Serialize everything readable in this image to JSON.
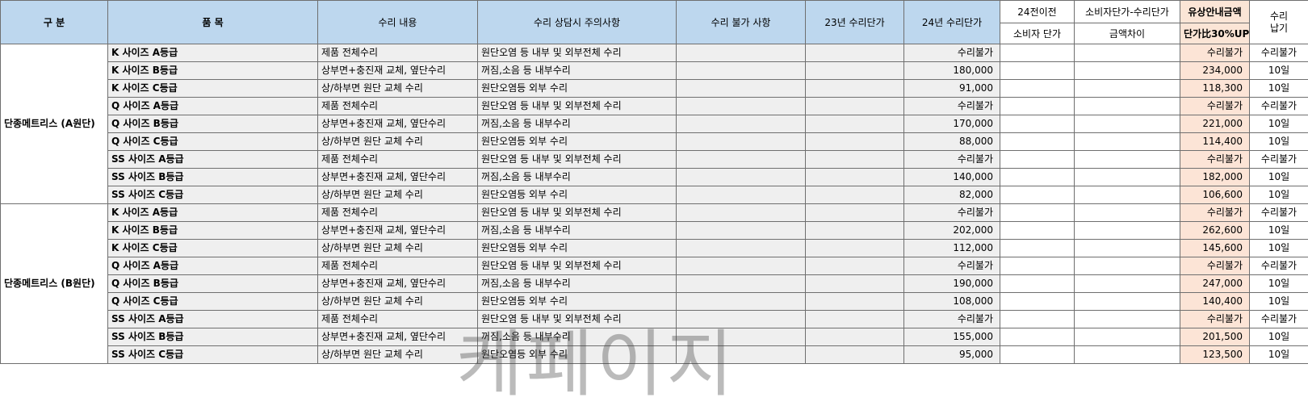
{
  "header": {
    "col_category": "구    분",
    "col_item": "품        목",
    "col_repair": "수리 내용",
    "col_notes": "수리 상담시 주의사항",
    "col_unrepairable": "수리 불가 사항",
    "col_price23": "23년 수리단가",
    "col_price24": "24년 수리단가",
    "col_before24": "24전이전",
    "col_consumer_price": "소비자 단가",
    "col_diff_top": "소비자단가-수리단가",
    "col_diff_bottom": "금액차이",
    "col_paid_top": "유상안내금액",
    "col_paid_bottom": "단가比30%UP",
    "col_days": "수리\n납기"
  },
  "groups": [
    {
      "name": "단종메트리스 (A원단)",
      "rows": [
        {
          "item": "K 사이즈 A등급",
          "repair": "제품 전체수리",
          "notes": "원단오염 등 내부 및 외부전체 수리",
          "price24": "수리불가",
          "paid": "수리불가",
          "days": "수리불가"
        },
        {
          "item": "K 사이즈 B등급",
          "repair": "상부면+충진재 교체, 옆단수리",
          "notes": "꺼짐,소음 등 내부수리",
          "price24": "180,000",
          "paid": "234,000",
          "days": "10일"
        },
        {
          "item": "K 사이즈 C등급",
          "repair": "상/하부면 원단 교체 수리",
          "notes": "원단오염등 외부 수리",
          "price24": "91,000",
          "paid": "118,300",
          "days": "10일"
        },
        {
          "item": "Q 사이즈 A등급",
          "repair": "제품 전체수리",
          "notes": "원단오염 등 내부 및 외부전체 수리",
          "price24": "수리불가",
          "paid": "수리불가",
          "days": "수리불가"
        },
        {
          "item": "Q 사이즈 B등급",
          "repair": "상부면+충진재 교체, 옆단수리",
          "notes": "꺼짐,소음 등 내부수리",
          "price24": "170,000",
          "paid": "221,000",
          "days": "10일"
        },
        {
          "item": "Q 사이즈 C등급",
          "repair": "상/하부면 원단 교체 수리",
          "notes": "원단오염등 외부 수리",
          "price24": "88,000",
          "paid": "114,400",
          "days": "10일"
        },
        {
          "item": "SS 사이즈 A등급",
          "repair": "제품 전체수리",
          "notes": "원단오염 등 내부 및 외부전체 수리",
          "price24": "수리불가",
          "paid": "수리불가",
          "days": "수리불가"
        },
        {
          "item": "SS 사이즈 B등급",
          "repair": "상부면+충진재 교체, 옆단수리",
          "notes": "꺼짐,소음 등 내부수리",
          "price24": "140,000",
          "paid": "182,000",
          "days": "10일"
        },
        {
          "item": "SS 사이즈 C등급",
          "repair": "상/하부면 원단 교체 수리",
          "notes": "원단오염등 외부 수리",
          "price24": "82,000",
          "paid": "106,600",
          "days": "10일"
        }
      ]
    },
    {
      "name": "단종메트리스 (B원단)",
      "rows": [
        {
          "item": "K 사이즈 A등급",
          "repair": "제품 전체수리",
          "notes": "원단오염 등 내부 및 외부전체 수리",
          "price24": "수리불가",
          "paid": "수리불가",
          "days": "수리불가"
        },
        {
          "item": "K 사이즈 B등급",
          "repair": "상부면+충진재 교체, 옆단수리",
          "notes": "꺼짐,소음 등 내부수리",
          "price24": "202,000",
          "paid": "262,600",
          "days": "10일"
        },
        {
          "item": "K 사이즈 C등급",
          "repair": "상/하부면 원단 교체 수리",
          "notes": "원단오염등 외부 수리",
          "price24": "112,000",
          "paid": "145,600",
          "days": "10일"
        },
        {
          "item": "Q 사이즈 A등급",
          "repair": "제품 전체수리",
          "notes": "원단오염 등 내부 및 외부전체 수리",
          "price24": "수리불가",
          "paid": "수리불가",
          "days": "수리불가"
        },
        {
          "item": "Q 사이즈 B등급",
          "repair": "상부면+충진재 교체, 옆단수리",
          "notes": "꺼짐,소음 등 내부수리",
          "price24": "190,000",
          "paid": "247,000",
          "days": "10일"
        },
        {
          "item": "Q 사이즈 C등급",
          "repair": "상/하부면 원단 교체 수리",
          "notes": "원단오염등 외부 수리",
          "price24": "108,000",
          "paid": "140,400",
          "days": "10일"
        },
        {
          "item": "SS 사이즈 A등급",
          "repair": "제품 전체수리",
          "notes": "원단오염 등 내부 및 외부전체 수리",
          "price24": "수리불가",
          "paid": "수리불가",
          "days": "수리불가"
        },
        {
          "item": "SS 사이즈 B등급",
          "repair": "상부면+충진재 교체, 옆단수리",
          "notes": "꺼짐,소음 등 내부수리",
          "price24": "155,000",
          "paid": "201,500",
          "days": "10일"
        },
        {
          "item": "SS 사이즈 C등급",
          "repair": "상/하부면 원단 교체 수리",
          "notes": "원단오염등 외부 수리",
          "price24": "95,000",
          "paid": "123,500",
          "days": "10일"
        }
      ]
    }
  ],
  "watermark": "케페이지",
  "colors": {
    "header_blue": "#bdd7ee",
    "paid_peach": "#fce4d6",
    "row_gray": "#efefef"
  }
}
